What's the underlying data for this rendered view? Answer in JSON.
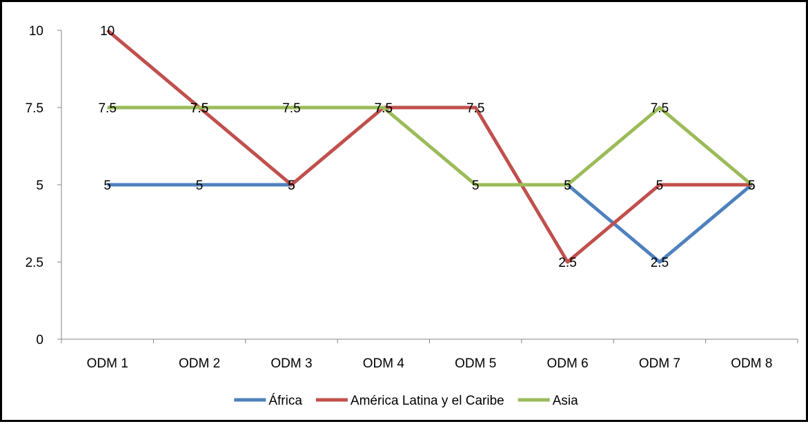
{
  "chart_data": {
    "type": "line",
    "categories": [
      "ODM 1",
      "ODM 2",
      "ODM 3",
      "ODM 4",
      "ODM 5",
      "ODM 6",
      "ODM 7",
      "ODM 8"
    ],
    "series": [
      {
        "name": "África",
        "color": "#4F81BD",
        "values": [
          5,
          5,
          5,
          null,
          null,
          5,
          2.5,
          5
        ]
      },
      {
        "name": "América Latina y el Caribe",
        "color": "#C0504D",
        "values": [
          10,
          7.5,
          5,
          7.5,
          7.5,
          2.5,
          5,
          5
        ]
      },
      {
        "name": "Asia",
        "color": "#9BBB59",
        "values": [
          7.5,
          7.5,
          7.5,
          7.5,
          5,
          5,
          7.5,
          5
        ]
      }
    ],
    "ylim": [
      0,
      10
    ],
    "yticks": [
      0,
      2.5,
      5,
      7.5,
      10
    ],
    "ytick_labels": [
      "0",
      "2.5",
      "5",
      "7.5",
      "10"
    ],
    "data_labels": true,
    "grid": false,
    "legend_position": "bottom"
  }
}
